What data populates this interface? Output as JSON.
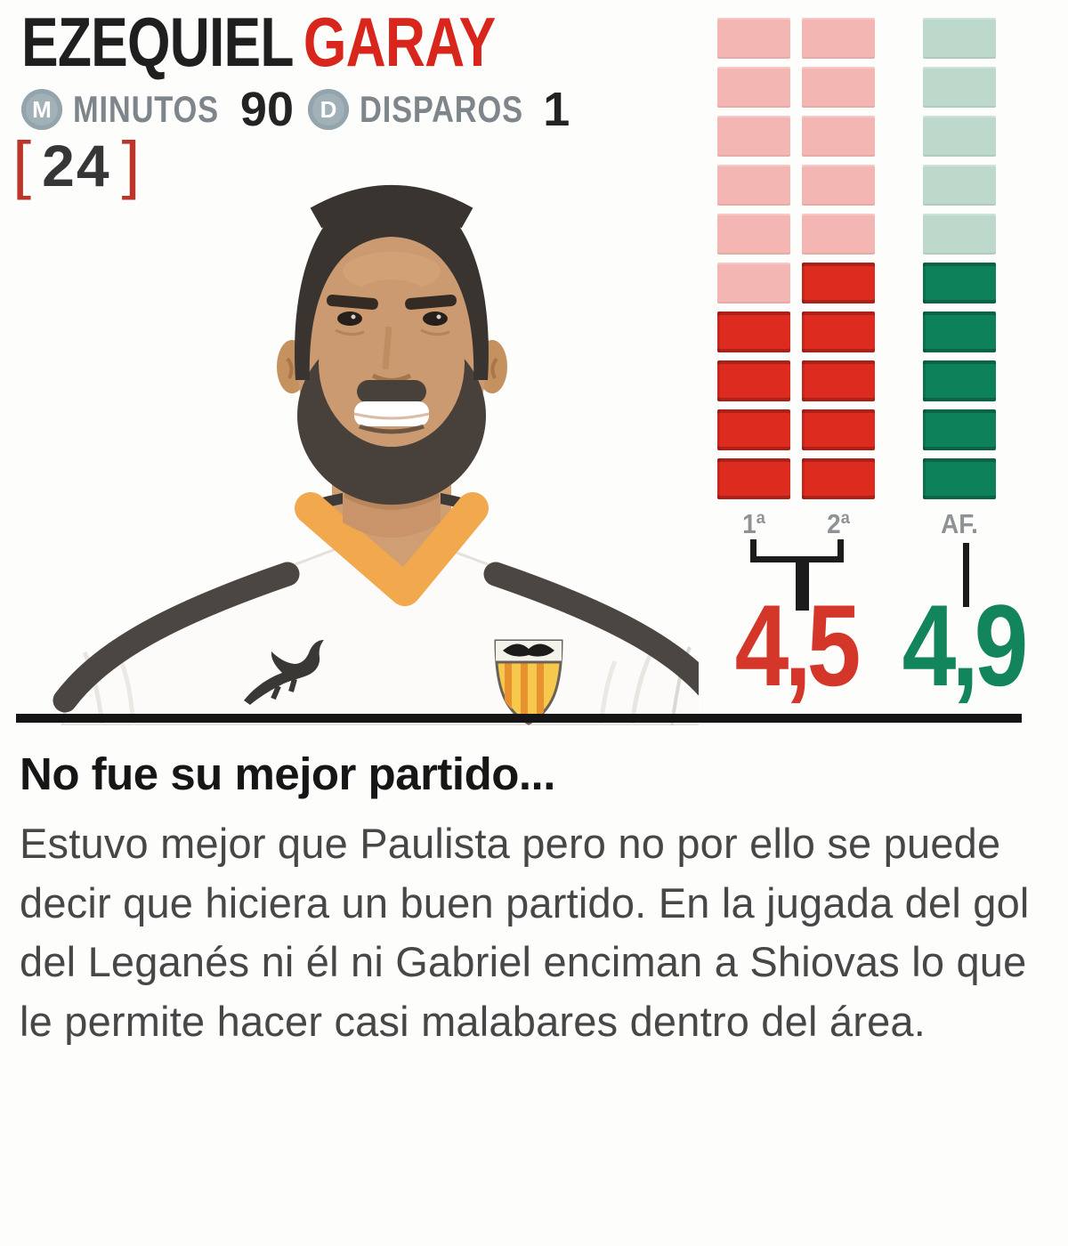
{
  "header": {
    "first_name": "EZEQUIEL",
    "last_name": "GARAY",
    "stats": [
      {
        "icon": "M",
        "icon_name": "minutes-icon",
        "label": "MINUTOS",
        "value": "90"
      },
      {
        "icon": "D",
        "icon_name": "shots-icon",
        "label": "DISPAROS",
        "value": "1"
      }
    ],
    "shirt_number": "24",
    "bracket_open": "[",
    "bracket_close": "]"
  },
  "accent_colors": {
    "red": "#d8261c",
    "green": "#12855c",
    "bracket_red": "#bb3529",
    "black": "#151515"
  },
  "chart_data": {
    "type": "bar",
    "title": "Match rating squares (0-10 scale, 10 segments per column)",
    "categories": [
      "1ª",
      "2ª",
      "AF."
    ],
    "series": [
      {
        "name": "1ª",
        "filled": 4,
        "total": 10,
        "fill_color": "#dd2b1f",
        "empty_color": "#f4b6b2"
      },
      {
        "name": "2ª",
        "filled": 5,
        "total": 10,
        "fill_color": "#dd2b1f",
        "empty_color": "#f4b6b2"
      },
      {
        "name": "AF.",
        "filled": 5,
        "total": 10,
        "fill_color": "#0d8159",
        "empty_color": "#bcd9cb"
      }
    ],
    "ratings": [
      {
        "value": "4,5",
        "color": "#d5362a",
        "applies_to": [
          "1ª",
          "2ª"
        ]
      },
      {
        "value": "4,9",
        "color": "#12855c",
        "applies_to": [
          "AF."
        ]
      }
    ],
    "legend_position": "below",
    "grid": false
  },
  "article": {
    "headline": "No fue su mejor partido...",
    "body": "Estuvo mejor que Paulista pero no por ello se puede decir que hiciera un buen partido. En la jugada del gol del Leganés ni él ni Gabriel enciman a Shiovas lo que le permite hacer casi malabares dentro del área."
  }
}
